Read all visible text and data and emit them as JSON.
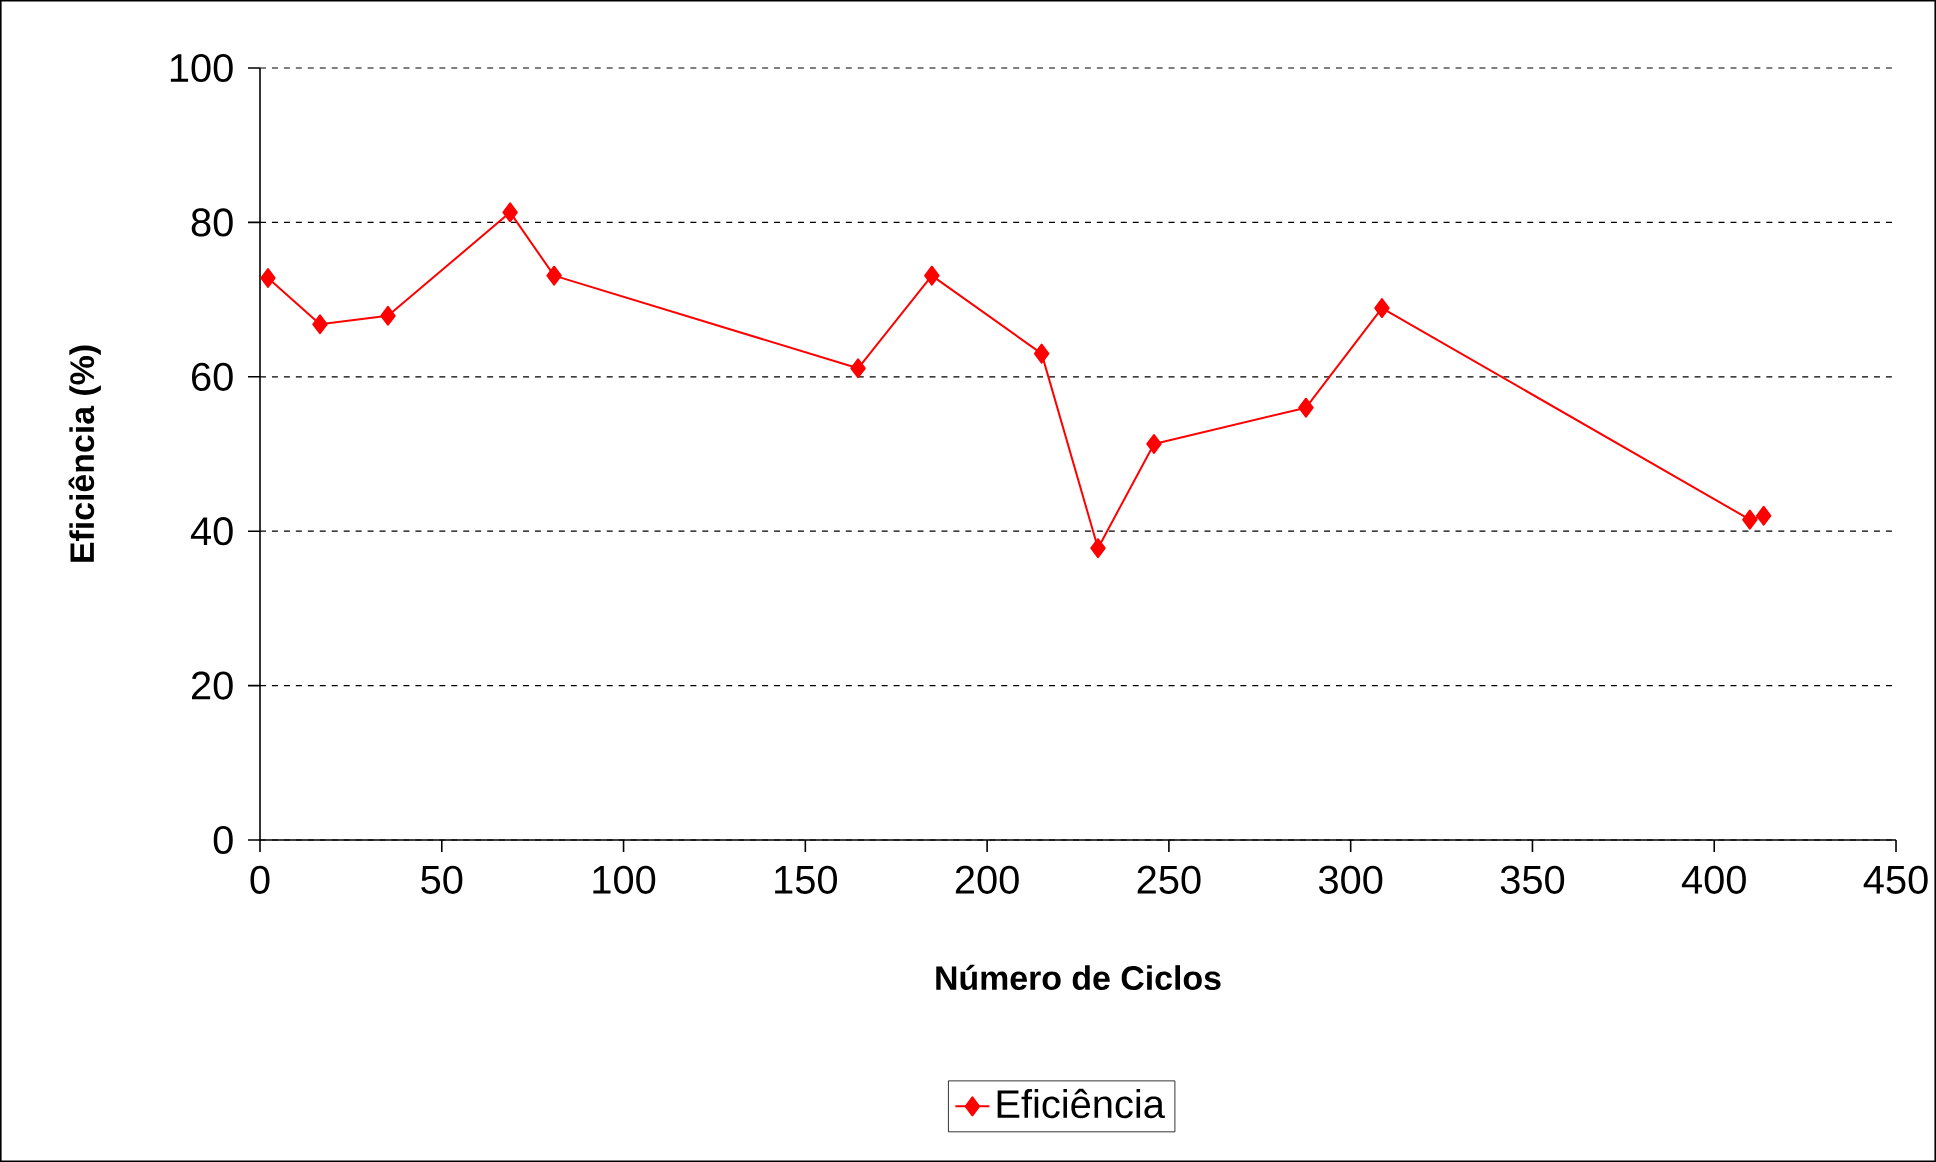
{
  "chart_data": {
    "type": "line",
    "xlabel": "Número de Ciclos",
    "ylabel": "Eficiência (%)",
    "x": [
      2.2,
      16.5,
      35.2,
      68.8,
      80.9,
      164.5,
      184.8,
      215,
      230.5,
      245.9,
      287.7,
      308.6,
      409.8,
      413.6
    ],
    "series": [
      {
        "name": "Eficiência",
        "color": "#ff0000",
        "values": [
          72.8,
          66.8,
          67.9,
          81.3,
          73.1,
          61.1,
          73.1,
          63.0,
          37.8,
          51.3,
          56.0,
          68.9,
          41.5,
          42.0
        ]
      }
    ],
    "xlim": [
      0,
      450
    ],
    "xticks": [
      0,
      50,
      100,
      150,
      200,
      250,
      300,
      350,
      400,
      450
    ],
    "ylim": [
      0,
      100
    ],
    "yticks": [
      0,
      20,
      40,
      60,
      80,
      100
    ],
    "grid": "y",
    "legend": "bottom",
    "marker": "diamond",
    "line_style": "solid"
  }
}
